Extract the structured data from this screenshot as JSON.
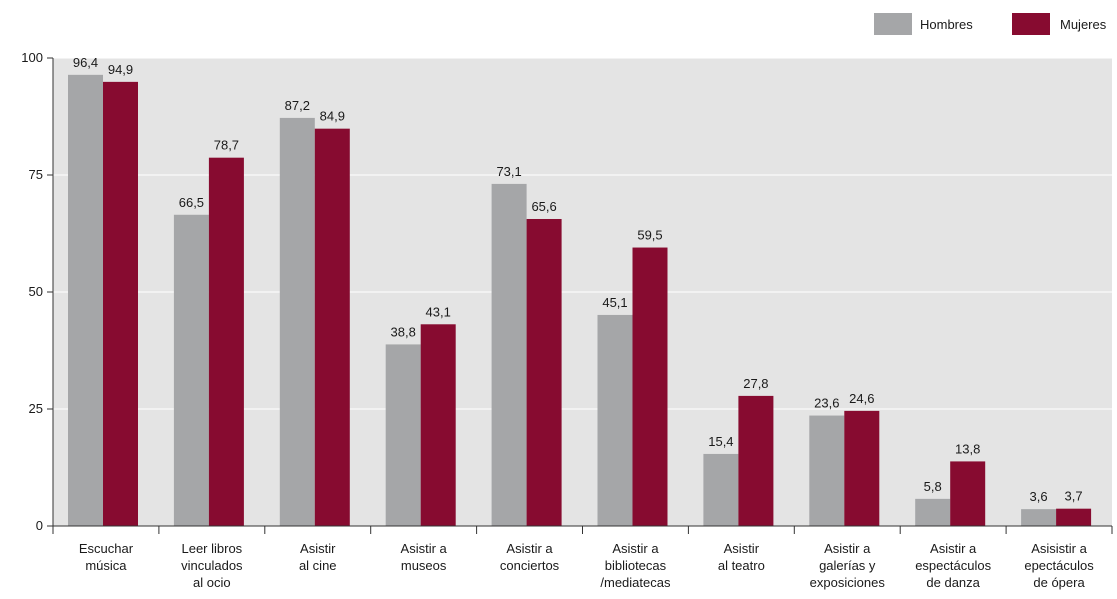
{
  "chart_data": {
    "type": "bar",
    "categories": [
      [
        "Escuchar",
        "música"
      ],
      [
        "Leer libros",
        "vinculados",
        "al ocio"
      ],
      [
        "Asistir",
        "al cine"
      ],
      [
        "Asistir a",
        "museos"
      ],
      [
        "Asistir a",
        "conciertos"
      ],
      [
        "Asistir a",
        "bibliotecas",
        "/mediatecas"
      ],
      [
        "Asistir",
        "al teatro"
      ],
      [
        "Asistir a",
        "galerías y",
        "exposiciones"
      ],
      [
        "Asistir a",
        "espectáculos",
        "de danza"
      ],
      [
        "Asisistir a",
        "epectáculos",
        "de ópera"
      ]
    ],
    "series": [
      {
        "name": "Hombres",
        "values": [
          96.4,
          66.5,
          87.2,
          38.8,
          73.1,
          45.1,
          15.4,
          23.6,
          5.8,
          3.6
        ],
        "labels": [
          "96,4",
          "66,5",
          "87,2",
          "38,8",
          "73,1",
          "45,1",
          "15,4",
          "23,6",
          "5,8",
          "3,6"
        ],
        "color": "#a5a6a8"
      },
      {
        "name": "Mujeres",
        "values": [
          94.9,
          78.7,
          84.9,
          43.1,
          65.6,
          59.5,
          27.8,
          24.6,
          13.8,
          3.7
        ],
        "labels": [
          "94,9",
          "78,7",
          "84,9",
          "43,1",
          "65,6",
          "59,5",
          "27,8",
          "24,6",
          "13,8",
          "3,7"
        ],
        "color": "#870b30"
      }
    ],
    "ylim": [
      0,
      100
    ],
    "yticks": [
      0,
      25,
      50,
      75,
      100
    ],
    "grid": true,
    "plot_background": "#e4e4e4",
    "legend_position": "top-right",
    "title": "",
    "xlabel": "",
    "ylabel": ""
  }
}
